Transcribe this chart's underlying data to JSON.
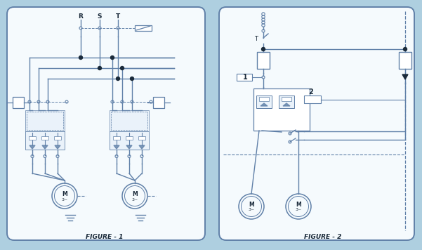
{
  "bg_color": "#aecfe0",
  "panel_color": "#f5fafd",
  "line_color": "#6080a8",
  "dark_color": "#1a2a3a",
  "title1": "FIGURE - 1",
  "title2": "FIGURE - 2",
  "lR": "R",
  "lS": "S",
  "lT": "T",
  "l1": "1",
  "l2": "2"
}
